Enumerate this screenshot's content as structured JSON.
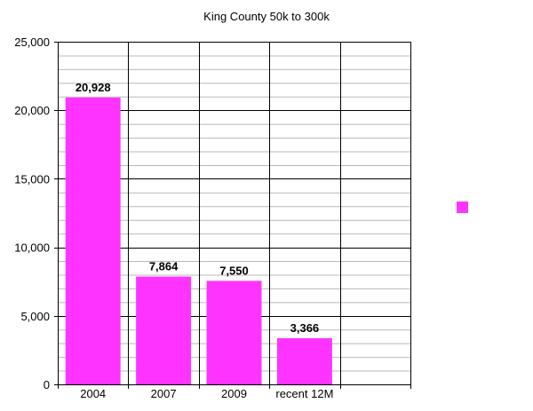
{
  "chart_data": {
    "type": "bar",
    "title": "King County 50k to 300k",
    "categories": [
      "2004",
      "2007",
      "2009",
      "recent 12M"
    ],
    "series": [
      {
        "values": [
          20928,
          7864,
          7550,
          3366
        ],
        "color": "#ff33ff"
      }
    ],
    "data_labels": [
      "20,928",
      "7,864",
      "7,550",
      "3,366"
    ],
    "y_ticks": [
      "0",
      "5,000",
      "10,000",
      "15,000",
      "20,000",
      "25,000"
    ],
    "ylim": [
      0,
      25000
    ],
    "xlabel": "",
    "ylabel": "",
    "grid": true,
    "legend_position": "right"
  }
}
